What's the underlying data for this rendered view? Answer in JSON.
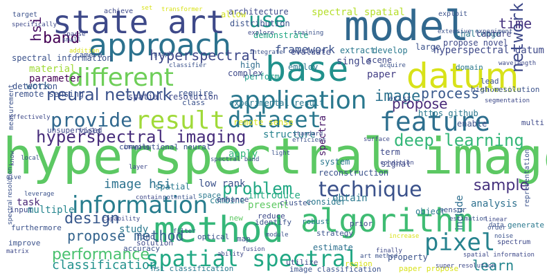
{
  "words": [
    {
      "text": "hyperspectral image",
      "color": "#5cc863"
    },
    {
      "text": "model",
      "color": "#31688e"
    },
    {
      "text": "datum",
      "color": "#d8e219"
    },
    {
      "text": "base",
      "color": "#21918c"
    },
    {
      "text": "method",
      "color": "#35b779"
    },
    {
      "text": "algorithm",
      "color": "#3fbc73"
    },
    {
      "text": "state art",
      "color": "#3e4989"
    },
    {
      "text": "approach",
      "color": "#2c728e"
    },
    {
      "text": "result",
      "color": "#a0da39"
    },
    {
      "text": "feature",
      "color": "#2e6f8e"
    },
    {
      "text": "application",
      "color": "#2a788e"
    },
    {
      "text": "different",
      "color": "#6ece58"
    },
    {
      "text": "information",
      "color": "#287d8e"
    },
    {
      "text": "spatial spectral",
      "color": "#22a884"
    },
    {
      "text": "pixel",
      "color": "#26828e"
    },
    {
      "text": "technique",
      "color": "#3b528b"
    },
    {
      "text": "dataset",
      "color": "#2a788e"
    },
    {
      "text": "provide",
      "color": "#31688e"
    },
    {
      "text": "use",
      "color": "#1f9a8a"
    },
    {
      "text": "hyperspectral imaging",
      "color": "#472d7b"
    },
    {
      "text": "neural network",
      "color": "#3b528b"
    },
    {
      "text": "problem",
      "color": "#22a884"
    },
    {
      "text": "deep learning",
      "color": "#35b779"
    },
    {
      "text": "performance",
      "color": "#48c16e"
    },
    {
      "text": "network",
      "color": "#3e4989"
    },
    {
      "text": "image",
      "color": "#2c728e"
    },
    {
      "text": "propose",
      "color": "#482878"
    },
    {
      "text": "sample",
      "color": "#46327e"
    },
    {
      "text": "propose method",
      "color": "#33638d"
    },
    {
      "text": "classification",
      "color": "#21918c"
    },
    {
      "text": "design",
      "color": "#38588c"
    },
    {
      "text": "learn",
      "color": "#24868e"
    },
    {
      "text": "hyperspectral",
      "color": "#3e4989"
    },
    {
      "text": "band",
      "color": "#440154"
    },
    {
      "text": "hsi",
      "color": "#471063"
    },
    {
      "text": "time",
      "color": "#46337f"
    },
    {
      "text": "image hsi",
      "color": "#2c728e"
    },
    {
      "text": "process",
      "color": "#38588c"
    },
    {
      "text": "framework",
      "color": "#3b528b"
    },
    {
      "text": "analysis",
      "color": "#2d708e"
    },
    {
      "text": "spectral spatial",
      "color": "#b5de2b"
    },
    {
      "text": "material",
      "color": "#a0da39"
    },
    {
      "text": "hyperspectral datum",
      "color": "#3e4989"
    },
    {
      "text": "structure",
      "color": "#26828e"
    },
    {
      "text": "present",
      "color": "#5ec962"
    },
    {
      "text": "parameter",
      "color": "#440154"
    },
    {
      "text": "single",
      "color": "#3f4788"
    },
    {
      "text": "apply",
      "color": "#31b57b"
    },
    {
      "text": "obtain",
      "color": "#2a788e"
    },
    {
      "text": "architecture",
      "color": "#3e4989"
    },
    {
      "text": "introduce",
      "color": "#25ab82"
    },
    {
      "text": "include",
      "color": "#2e6e8e"
    },
    {
      "text": "spectra",
      "color": "#481769"
    },
    {
      "text": "low rank",
      "color": "#3b528b"
    },
    {
      "text": "high",
      "color": "#2f6c8e"
    },
    {
      "text": "large",
      "color": "#3b528b"
    },
    {
      "text": "work",
      "color": "#31688e"
    },
    {
      "text": "paper",
      "color": "#433e85"
    },
    {
      "text": "task",
      "color": "#482475"
    },
    {
      "text": "multiple",
      "color": "#25858e"
    },
    {
      "text": "study",
      "color": "#2a788e"
    },
    {
      "text": "combine",
      "color": "#287d8e"
    },
    {
      "text": "perform",
      "color": "#1f9e89"
    },
    {
      "text": "experimental result",
      "color": "#2a788e"
    },
    {
      "text": "spectral information",
      "color": "#3b528b"
    },
    {
      "text": "remote sensing",
      "color": "#3b528b"
    },
    {
      "text": "spatial resolution",
      "color": "#3e4989"
    },
    {
      "text": "estimate",
      "color": "#2d708e"
    },
    {
      "text": "object",
      "color": "#2a788e"
    },
    {
      "text": "enable",
      "color": "#3b528b"
    },
    {
      "text": "system",
      "color": "#2a788e"
    },
    {
      "text": "reconstruction",
      "color": "#3b528b"
    },
    {
      "text": "spatial",
      "color": "#2a788e"
    },
    {
      "text": "signal",
      "color": "#3e4989"
    },
    {
      "text": "challenge",
      "color": "#2a788e"
    },
    {
      "text": "propose novel",
      "color": "#3e4989"
    },
    {
      "text": "capture",
      "color": "#414487"
    },
    {
      "text": "allow",
      "color": "#d0e11c"
    },
    {
      "text": "distribution",
      "color": "#3b528b"
    },
    {
      "text": "demonstrate",
      "color": "#22a884"
    },
    {
      "text": "evaluate",
      "color": "#3e4989"
    },
    {
      "text": "extract",
      "color": "#2a788e"
    },
    {
      "text": "develop",
      "color": "#2a788e"
    },
    {
      "text": "scene",
      "color": "#3e4989"
    },
    {
      "text": "detection",
      "color": "#3b528b"
    },
    {
      "text": "require",
      "color": "#3b528b"
    },
    {
      "text": "complex",
      "color": "#3e4989"
    },
    {
      "text": "employ",
      "color": "#2a788e"
    },
    {
      "text": "class",
      "color": "#3b528b"
    },
    {
      "text": "convolutional neural",
      "color": "#3b528b"
    },
    {
      "text": "term",
      "color": "#3e4989"
    },
    {
      "text": "unsupervised",
      "color": "#3e4989"
    },
    {
      "text": "show",
      "color": "#3b528b"
    },
    {
      "text": "effective",
      "color": "#c2df23"
    },
    {
      "text": "https github",
      "color": "#2a788e"
    },
    {
      "text": "exist",
      "color": "#3b528b"
    },
    {
      "text": "multi",
      "color": "#3e4989"
    },
    {
      "text": "lead",
      "color": "#3b528b"
    },
    {
      "text": "domain",
      "color": "#2a788e"
    },
    {
      "text": "high resolution",
      "color": "#3b528b"
    },
    {
      "text": "camera",
      "color": "#3b528b"
    },
    {
      "text": "field",
      "color": "#3e4989"
    },
    {
      "text": "remote sense",
      "color": "#d8e219"
    },
    {
      "text": "measurement",
      "color": "#3b528b"
    },
    {
      "text": "space",
      "color": "#2a788e"
    },
    {
      "text": "enhance",
      "color": "#3e4989"
    },
    {
      "text": "cluster",
      "color": "#3b528b"
    },
    {
      "text": "consider",
      "color": "#2a788e"
    },
    {
      "text": "sensor",
      "color": "#3b528b"
    },
    {
      "text": "robust",
      "color": "#2a788e"
    },
    {
      "text": "identify",
      "color": "#3b528b"
    },
    {
      "text": "reduce",
      "color": "#3e4989"
    },
    {
      "text": "optical",
      "color": "#3b528b"
    },
    {
      "text": "new",
      "color": "#5ec962"
    },
    {
      "text": "find",
      "color": "#3b528b"
    },
    {
      "text": "solution",
      "color": "#3e4989"
    },
    {
      "text": "accuracy",
      "color": "#3b528b"
    },
    {
      "text": "strategy",
      "color": "#3b528b"
    },
    {
      "text": "prior",
      "color": "#3e4989"
    },
    {
      "text": "region",
      "color": "#d8e219"
    },
    {
      "text": "property",
      "color": "#3b528b"
    },
    {
      "text": "utilize",
      "color": "#3e4989"
    },
    {
      "text": "map",
      "color": "#3b528b"
    },
    {
      "text": "hsi classification",
      "color": "#2a788e"
    },
    {
      "text": "image classification",
      "color": "#3b528b"
    },
    {
      "text": "paper propose",
      "color": "#d8e219"
    },
    {
      "text": "super resolution",
      "color": "#3e4989"
    },
    {
      "text": "representation",
      "color": "#3b528b"
    },
    {
      "text": "spectrum",
      "color": "#3e4989"
    },
    {
      "text": "generate",
      "color": "#2a788e"
    },
    {
      "text": "improve",
      "color": "#3b528b"
    },
    {
      "text": "furthermore",
      "color": "#3b528b"
    },
    {
      "text": "input",
      "color": "#3e4989"
    },
    {
      "text": "target",
      "color": "#3b528b"
    },
    {
      "text": "achieve",
      "color": "#3e4989"
    },
    {
      "text": "set",
      "color": "#d8e219"
    },
    {
      "text": "exploit",
      "color": "#3b528b"
    },
    {
      "text": "specifically",
      "color": "#3e4989"
    },
    {
      "text": "acquire",
      "color": "#3b528b"
    },
    {
      "text": "spectral resolution",
      "color": "#3b528b"
    },
    {
      "text": "condition",
      "color": "#3e4989"
    },
    {
      "text": "efficient",
      "color": "#3b528b"
    },
    {
      "text": "potential",
      "color": "#3b528b"
    },
    {
      "text": "transformer",
      "color": "#d8e219"
    },
    {
      "text": "sparse",
      "color": "#3e4989"
    },
    {
      "text": "small",
      "color": "#3b528b"
    },
    {
      "text": "explore",
      "color": "#3e4989"
    },
    {
      "text": "training",
      "color": "#3b528b"
    },
    {
      "text": "wavelength",
      "color": "#3e4989"
    },
    {
      "text": "estimation",
      "color": "#3b528b"
    },
    {
      "text": "layer",
      "color": "#3e4989"
    },
    {
      "text": "give",
      "color": "#3b528b"
    },
    {
      "text": "matrix",
      "color": "#3e4989"
    },
    {
      "text": "module",
      "color": "#3b528b"
    },
    {
      "text": "finally",
      "color": "#3e4989"
    },
    {
      "text": "increase",
      "color": "#d8e219"
    },
    {
      "text": "noise",
      "color": "#3b528b"
    },
    {
      "text": "surface",
      "color": "#3e4989"
    },
    {
      "text": "addition",
      "color": "#d8e219"
    },
    {
      "text": "integrate",
      "color": "#3b528b"
    },
    {
      "text": "ability",
      "color": "#3e4989"
    },
    {
      "text": "art method",
      "color": "#3b528b"
    },
    {
      "text": "spatial information",
      "color": "#3e4989"
    },
    {
      "text": "extensive experiment",
      "color": "#3b528b"
    },
    {
      "text": "segmentation",
      "color": "#3e4989"
    },
    {
      "text": "classifier",
      "color": "#3b528b"
    },
    {
      "text": "standard",
      "color": "#3e4989"
    },
    {
      "text": "spectral band",
      "color": "#3b528b"
    },
    {
      "text": "linear",
      "color": "#3e4989"
    },
    {
      "text": "order",
      "color": "#3b528b"
    },
    {
      "text": "effectively",
      "color": "#3e4989"
    },
    {
      "text": "local",
      "color": "#3b528b"
    },
    {
      "text": "fusion",
      "color": "#3e4989"
    },
    {
      "text": "graph",
      "color": "#3b528b"
    },
    {
      "text": "imaging",
      "color": "#3e4989"
    },
    {
      "text": "light",
      "color": "#3b528b"
    },
    {
      "text": "know",
      "color": "#3e4989"
    },
    {
      "text": "filter",
      "color": "#3b528b"
    },
    {
      "text": "capability",
      "color": "#3e4989"
    },
    {
      "text": "data",
      "color": "#3b528b"
    },
    {
      "text": "contain",
      "color": "#3e4989"
    },
    {
      "text": "leverage",
      "color": "#3b528b"
    },
    {
      "text": "case",
      "color": "#3e4989"
    }
  ]
}
